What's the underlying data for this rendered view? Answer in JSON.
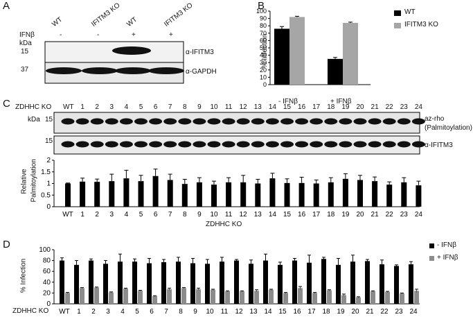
{
  "panels": {
    "A": {
      "label": "A",
      "lanes": [
        "WT",
        "IFITM3 KO",
        "WT",
        "IFITM3 KO"
      ],
      "treatment_label": "IFNβ",
      "treatments": [
        "-",
        "-",
        "+",
        "+"
      ],
      "kda_label": "kDa",
      "marker_top": "15",
      "marker_bottom": "37",
      "blot_labels": [
        "α-IFITM3",
        "α-GAPDH"
      ]
    },
    "B": {
      "label": "B",
      "ylabel": "% Infection",
      "legend": [
        "WT",
        "IFITM3 KO"
      ]
    },
    "C": {
      "label": "C",
      "row_label": "ZDHHC KO",
      "lanes": [
        "WT",
        "1",
        "2",
        "3",
        "4",
        "5",
        "6",
        "7",
        "8",
        "9",
        "10",
        "11",
        "12",
        "13",
        "14",
        "15",
        "16",
        "17",
        "18",
        "19",
        "20",
        "21",
        "22",
        "23",
        "24"
      ],
      "kda_label": "kDa",
      "marker_1": "15",
      "marker_2": "15",
      "blot_label_1a": "az-rho",
      "blot_label_1b": "(Palmitoylation)",
      "blot_label_2": "α-IFITM3",
      "ylabel_1": "Relative",
      "ylabel_2": "Palmitoylation",
      "xlabel": "ZDHHC KO"
    },
    "D": {
      "label": "D",
      "ylabel": "% Infection",
      "row_label": "ZDHHC KO",
      "legend": [
        "- IFNβ",
        "+ IFNβ"
      ]
    }
  },
  "chart_data": [
    {
      "id": "B",
      "type": "bar",
      "categories": [
        "- IFNβ",
        "+ IFNβ"
      ],
      "series": [
        {
          "name": "WT",
          "values": [
            76,
            35
          ],
          "errors": [
            3,
            2
          ],
          "color": "#000000"
        },
        {
          "name": "IFITM3 KO",
          "values": [
            92,
            84
          ],
          "errors": [
            1,
            1
          ],
          "color": "#a6a6a6"
        }
      ],
      "ylabel": "% Infection",
      "ylim": [
        0,
        100
      ],
      "yticks": [
        0,
        10,
        20,
        30,
        40,
        50,
        60,
        70,
        80,
        90,
        100
      ],
      "legend_position": "right"
    },
    {
      "id": "C",
      "type": "bar",
      "categories": [
        "WT",
        "1",
        "2",
        "3",
        "4",
        "5",
        "6",
        "7",
        "8",
        "9",
        "10",
        "11",
        "12",
        "13",
        "14",
        "15",
        "16",
        "17",
        "18",
        "19",
        "20",
        "21",
        "22",
        "23",
        "24"
      ],
      "series": [
        {
          "values": [
            1.0,
            1.08,
            1.07,
            1.1,
            1.22,
            1.1,
            1.32,
            1.15,
            0.98,
            1.05,
            0.95,
            1.05,
            1.05,
            1.0,
            1.22,
            1.02,
            1.02,
            1.0,
            1.05,
            1.2,
            1.15,
            1.1,
            0.95,
            1.05,
            0.92
          ],
          "errors": [
            0.02,
            0.15,
            0.12,
            0.3,
            0.35,
            0.25,
            0.3,
            0.25,
            0.2,
            0.2,
            0.15,
            0.2,
            0.3,
            0.18,
            0.22,
            0.18,
            0.25,
            0.15,
            0.2,
            0.22,
            0.2,
            0.18,
            0.12,
            0.2,
            0.18
          ],
          "color": "#000000"
        }
      ],
      "ylabel": "Relative Palmitoylation",
      "xlabel": "ZDHHC KO",
      "ylim": [
        0,
        2
      ],
      "yticks": [
        0,
        0.5,
        1,
        1.5,
        2
      ]
    },
    {
      "id": "D",
      "type": "bar",
      "categories": [
        "WT",
        "1",
        "2",
        "3",
        "4",
        "5",
        "6",
        "7",
        "8",
        "9",
        "10",
        "11",
        "12",
        "13",
        "14",
        "15",
        "16",
        "17",
        "18",
        "19",
        "20",
        "21",
        "22",
        "23",
        "24"
      ],
      "series": [
        {
          "name": "- IFNβ",
          "color": "#000000",
          "values": [
            80,
            72,
            80,
            74,
            78,
            78,
            75,
            77,
            78,
            75,
            74,
            78,
            80,
            74,
            80,
            72,
            80,
            76,
            83,
            72,
            78,
            79,
            73,
            70,
            73
          ],
          "errors": [
            5,
            8,
            3,
            6,
            14,
            5,
            9,
            5,
            8,
            9,
            8,
            8,
            2,
            7,
            12,
            5,
            4,
            14,
            3,
            12,
            12,
            3,
            8,
            2,
            5
          ]
        },
        {
          "name": "+ IFNβ",
          "color": "#8c8c8c",
          "values": [
            20,
            29,
            30,
            21,
            28,
            24,
            14,
            27,
            29,
            27,
            26,
            23,
            23,
            24,
            26,
            20,
            29,
            20,
            25,
            16,
            12,
            23,
            22,
            19,
            24
          ],
          "errors": [
            1,
            1,
            1,
            1,
            1,
            1,
            1,
            2,
            1,
            2,
            1,
            1,
            1,
            2,
            1,
            1,
            3,
            1,
            1,
            2,
            1,
            1,
            1,
            1,
            3
          ]
        }
      ],
      "ylabel": "% Infection",
      "ylim": [
        0,
        100
      ],
      "yticks": [
        0,
        20,
        40,
        60,
        80,
        100
      ],
      "legend_position": "right"
    }
  ]
}
